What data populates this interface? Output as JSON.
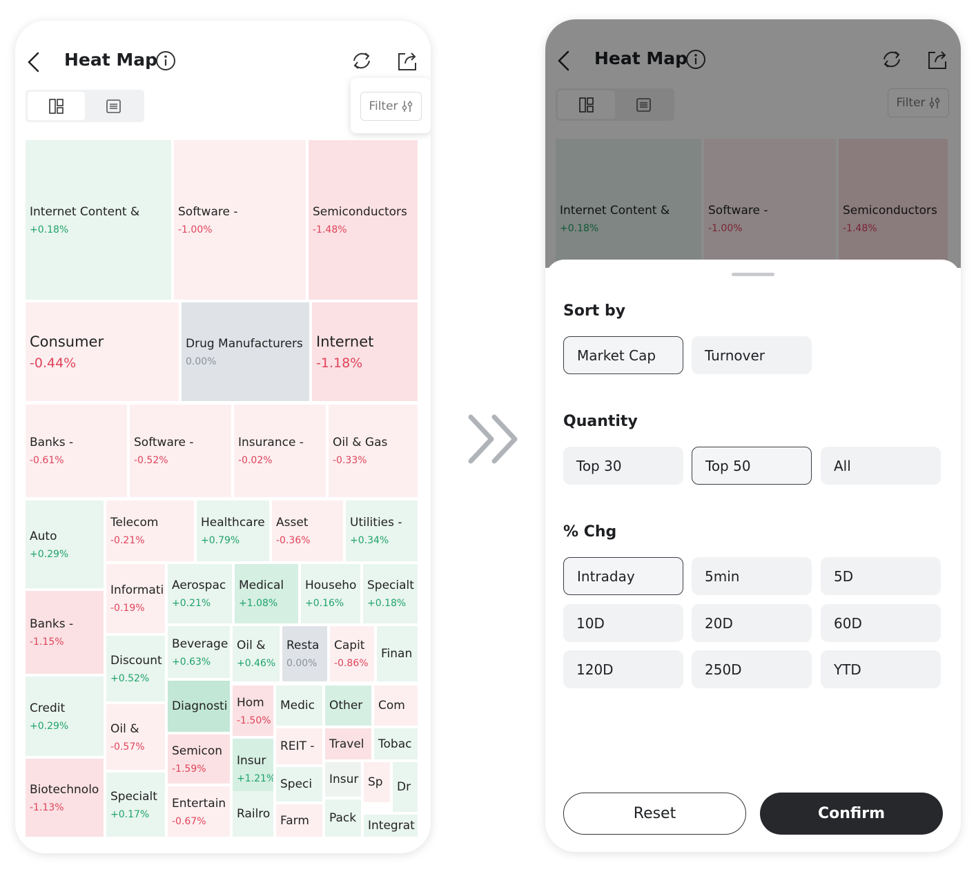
{
  "left": {
    "header": {
      "title": "Heat Map"
    },
    "filter": "Filter",
    "tiles": [
      {
        "name": "Internet Content &",
        "chg": "+0.18%",
        "color": "#e9f5ef"
      },
      {
        "name": "Software -",
        "chg": "-1.00%",
        "color": "#fdeff0"
      },
      {
        "name": "Semiconductors",
        "chg": "-1.48%",
        "color": "#fbe1e4"
      },
      {
        "name": "Consumer",
        "chg": "-0.44%",
        "color": "#fdeff0"
      },
      {
        "name": "Drug Manufacturers",
        "chg": "0.00%",
        "color": "#dfe3e8"
      },
      {
        "name": "Internet",
        "chg": "-1.18%",
        "color": "#fbe1e4"
      },
      {
        "name": "Banks -",
        "chg": "-0.61%",
        "color": "#fdeff0"
      },
      {
        "name": "Software -",
        "chg": "-0.52%",
        "color": "#fdeff0"
      },
      {
        "name": "Insurance -",
        "chg": "-0.02%",
        "color": "#fdeff0"
      },
      {
        "name": "Oil & Gas",
        "chg": "-0.33%",
        "color": "#fdeff0"
      },
      {
        "name": "Auto",
        "chg": "+0.29%",
        "color": "#e9f5ef"
      },
      {
        "name": "Banks -",
        "chg": "-1.15%",
        "color": "#fbe1e4"
      },
      {
        "name": "Credit",
        "chg": "+0.29%",
        "color": "#e9f5ef"
      },
      {
        "name": "Biotechnolo",
        "chg": "-1.13%",
        "color": "#fbe1e4"
      },
      {
        "name": "Telecom",
        "chg": "-0.21%",
        "color": "#fdeff0"
      },
      {
        "name": "Healthcare",
        "chg": "+0.79%",
        "color": "#e9f5ef"
      },
      {
        "name": "Asset",
        "chg": "-0.36%",
        "color": "#fdeff0"
      },
      {
        "name": "Utilities -",
        "chg": "+0.34%",
        "color": "#e9f5ef"
      },
      {
        "name": "Informati",
        "chg": "-0.19%",
        "color": "#fdeff0"
      },
      {
        "name": "Aerospac",
        "chg": "+0.21%",
        "color": "#e9f5ef"
      },
      {
        "name": "Medical",
        "chg": "+1.08%",
        "color": "#d5efe3"
      },
      {
        "name": "Househo",
        "chg": "+0.16%",
        "color": "#e9f5ef"
      },
      {
        "name": "Specialt",
        "chg": "+0.18%",
        "color": "#e9f5ef"
      },
      {
        "name": "Discount",
        "chg": "+0.52%",
        "color": "#e9f5ef"
      },
      {
        "name": "Beverage",
        "chg": "+0.63%",
        "color": "#e9f5ef"
      },
      {
        "name": "Oil &",
        "chg": "+0.46%",
        "color": "#e9f5ef"
      },
      {
        "name": "Resta",
        "chg": "0.00%",
        "color": "#dfe3e8"
      },
      {
        "name": "Capit",
        "chg": "-0.86%",
        "color": "#fdeff0"
      },
      {
        "name": "Finan",
        "color": "#e9f5ef"
      },
      {
        "name": "Oil &",
        "chg": "-0.57%",
        "color": "#fdeff0"
      },
      {
        "name": "Specialt",
        "chg": "+0.17%",
        "color": "#e9f5ef"
      },
      {
        "name": "Diagnosti",
        "color": "#c2e7d6"
      },
      {
        "name": "Semicon",
        "chg": "-1.59%",
        "color": "#fbe1e4"
      },
      {
        "name": "Entertain",
        "chg": "-0.67%",
        "color": "#fdeff0"
      },
      {
        "name": "Hom",
        "chg": "-1.50%",
        "color": "#fbe1e4"
      },
      {
        "name": "Insur",
        "chg": "+1.21%",
        "color": "#d5efe3"
      },
      {
        "name": "Railro",
        "color": "#e9f5ef"
      },
      {
        "name": "Medic",
        "color": "#e9f5ef"
      },
      {
        "name": "Other",
        "color": "#d5efe3"
      },
      {
        "name": "Com",
        "color": "#fdeff0"
      },
      {
        "name": "REIT -",
        "color": "#fdeff0"
      },
      {
        "name": "Travel",
        "color": "#fbe1e4"
      },
      {
        "name": "Tobac",
        "color": "#e9f5ef"
      },
      {
        "name": "Speci",
        "color": "#e9f5ef"
      },
      {
        "name": "Insur",
        "color": "#eef3f0"
      },
      {
        "name": "Sp",
        "color": "#fdeff0"
      },
      {
        "name": "Dr",
        "color": "#e9f5ef"
      },
      {
        "name": "Farm",
        "color": "#fdeff0"
      },
      {
        "name": "Pack",
        "color": "#e9f5ef"
      },
      {
        "name": "Integrat",
        "color": "#e9f5ef"
      }
    ]
  },
  "right": {
    "header": {
      "title": "Heat Map"
    },
    "filter": "Filter",
    "tiles": [
      {
        "name": "Internet Content &",
        "chg": "+0.18%",
        "color": "#e9f5ef"
      },
      {
        "name": "Software -",
        "chg": "-1.00%",
        "color": "#fdeff0"
      },
      {
        "name": "Semiconductors",
        "chg": "-1.48%",
        "color": "#fbe1e4"
      }
    ],
    "sheet": {
      "sections": [
        {
          "title": "Sort by",
          "options": [
            "Market Cap",
            "Turnover"
          ],
          "selected": 0
        },
        {
          "title": "Quantity",
          "options": [
            "Top 30",
            "Top 50",
            "All"
          ],
          "selected": 1
        },
        {
          "title": "% Chg",
          "options": [
            "Intraday",
            "5min",
            "5D",
            "10D",
            "20D",
            "60D",
            "120D",
            "250D",
            "YTD"
          ],
          "selected": 0
        }
      ],
      "reset": "Reset",
      "confirm": "Confirm"
    }
  }
}
